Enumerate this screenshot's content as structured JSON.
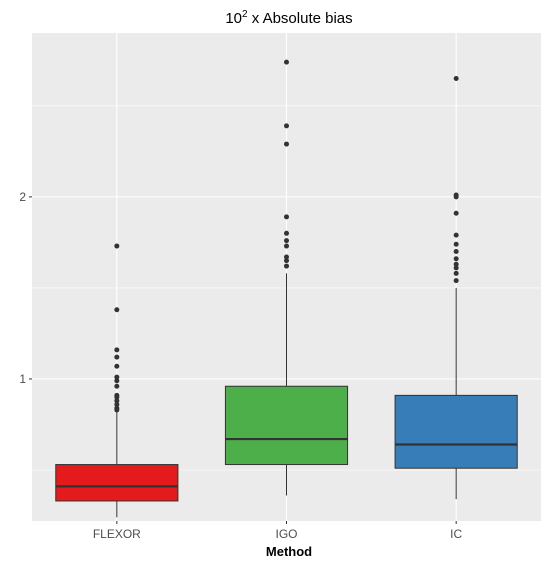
{
  "chart_data": {
    "type": "boxplot",
    "title_base": "10",
    "title_exponent": "2",
    "title_rest": " x Absolute bias",
    "xlabel": "Method",
    "ylabel": "",
    "ylim": [
      0.22,
      2.9
    ],
    "yticks": [
      {
        "value": 1,
        "label": "1"
      },
      {
        "value": 2,
        "label": "2"
      }
    ],
    "grid": true,
    "colors": {
      "panel": "#EBEBEB",
      "grid_major": "#FFFFFF",
      "outline": "#333333"
    },
    "categories": [
      "FLEXOR",
      "IGO",
      "IC"
    ],
    "boxes": [
      {
        "category": "FLEXOR",
        "color": "#E41A1C",
        "whisker_low": 0.24,
        "q1": 0.33,
        "median": 0.41,
        "q3": 0.53,
        "whisker_high": 0.82,
        "outliers": [
          0.83,
          0.84,
          0.86,
          0.88,
          0.9,
          0.91,
          0.96,
          0.99,
          1.01,
          1.07,
          1.12,
          1.16,
          1.38,
          1.73
        ]
      },
      {
        "category": "IGO",
        "color": "#4DAF4A",
        "whisker_low": 0.36,
        "q1": 0.53,
        "median": 0.67,
        "q3": 0.96,
        "whisker_high": 1.58,
        "outliers": [
          1.62,
          1.65,
          1.67,
          1.73,
          1.76,
          1.8,
          1.89,
          2.29,
          2.39,
          2.74
        ]
      },
      {
        "category": "IC",
        "color": "#377EB8",
        "whisker_low": 0.34,
        "q1": 0.51,
        "median": 0.64,
        "q3": 0.91,
        "whisker_high": 1.5,
        "outliers": [
          1.54,
          1.58,
          1.61,
          1.63,
          1.66,
          1.7,
          1.74,
          1.79,
          1.91,
          2.0,
          2.01,
          2.65
        ]
      }
    ]
  }
}
